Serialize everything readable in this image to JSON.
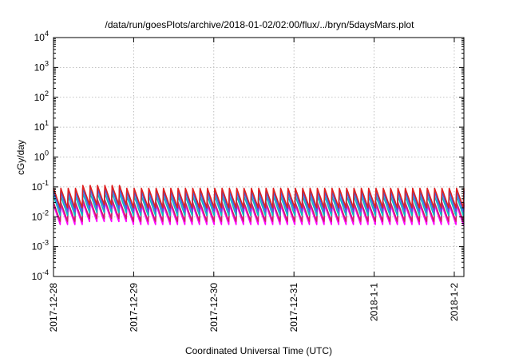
{
  "chart_data": {
    "type": "line",
    "title": "/data/run/goesPlots/archive/2018-01-02/02:00/flux/../bryn/5daysMars.plot",
    "xlabel": "Coordinated Universal Time (UTC)",
    "ylabel": "cGy/day",
    "yscale": "log",
    "ylim_exp": [
      -4,
      4
    ],
    "y_tick_labels": [
      {
        "base": "10",
        "exp": "-4"
      },
      {
        "base": "10",
        "exp": "-3"
      },
      {
        "base": "10",
        "exp": "-2"
      },
      {
        "base": "10",
        "exp": "-1"
      },
      {
        "base": "10",
        "exp": "0"
      },
      {
        "base": "10",
        "exp": "1"
      },
      {
        "base": "10",
        "exp": "2"
      },
      {
        "base": "10",
        "exp": "3"
      },
      {
        "base": "10",
        "exp": "4"
      }
    ],
    "xlim_days": [
      0,
      5.12
    ],
    "x_tick_labels": [
      "2017-12-28",
      "2017-12-29",
      "2017-12-30",
      "2017-12-31",
      "2018-1-1",
      "2018-1-2"
    ],
    "x_tick_days": [
      0,
      1,
      2,
      3,
      4,
      5
    ],
    "grid": true,
    "legend": "none",
    "series": [
      {
        "color": "#ff00ff",
        "peak": 0.025,
        "trough": 0.0055
      },
      {
        "color": "#cc2266",
        "peak": 0.03,
        "trough": 0.007
      },
      {
        "color": "#00c0c0",
        "peak": 0.05,
        "trough": 0.011
      },
      {
        "color": "#8a2be2",
        "peak": 0.07,
        "trough": 0.015
      },
      {
        "color": "#2a6fe8",
        "peak": 0.075,
        "trough": 0.017
      },
      {
        "color": "#e02020",
        "peak": 0.09,
        "trough": 0.02
      }
    ],
    "periods_per_day": 11
  }
}
